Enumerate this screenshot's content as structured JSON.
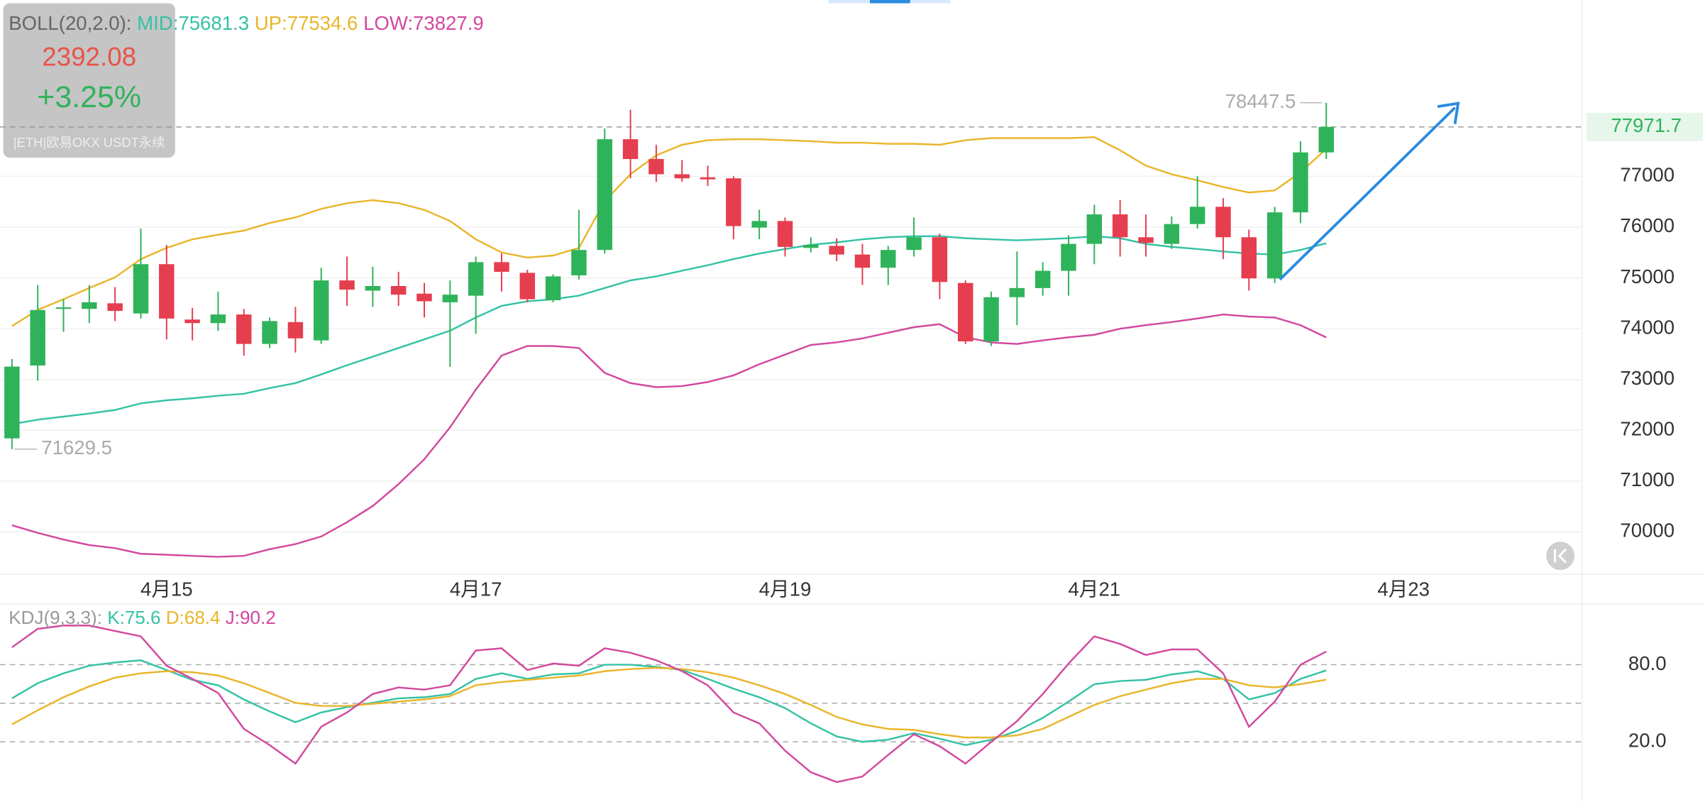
{
  "chart_data": [
    {
      "type": "candlestick",
      "indicator": "BOLL(20,2.0):",
      "ticker_price": "2392.08",
      "ticker_change": "+3.25%",
      "instrument": "|ETH|欧易OKX USDT永续",
      "max_price": 78447.5,
      "min_price": 71629.5,
      "last_price": 77971.7,
      "up_color": "#2fb35a",
      "down_color": "#e53e4e",
      "categories": [
        null,
        null,
        null,
        null,
        null,
        null,
        "4月15",
        null,
        null,
        null,
        null,
        null,
        null,
        null,
        null,
        null,
        null,
        null,
        "4月17",
        null,
        null,
        null,
        null,
        null,
        null,
        null,
        null,
        null,
        null,
        null,
        "4月19",
        null,
        null,
        null,
        null,
        null,
        null,
        null,
        null,
        null,
        null,
        null,
        "4月21",
        null,
        null,
        null,
        null,
        null,
        null,
        null,
        null,
        null,
        null,
        null,
        "4月23",
        null,
        null,
        null,
        null,
        null,
        null
      ],
      "open": [
        71841,
        73276,
        74390,
        74390,
        74500,
        74300,
        75270,
        74180,
        74110,
        74280,
        73700,
        74130,
        73770,
        74950,
        74750,
        74840,
        74690,
        74520,
        74650,
        75310,
        75100,
        74560,
        75050,
        75550,
        77730,
        77340,
        77040,
        76980,
        76960,
        75990,
        76120,
        75590,
        75630,
        75460,
        75200,
        75550,
        75800,
        74900,
        73750,
        74620,
        74800,
        75140,
        75670,
        76250,
        75800,
        75670,
        76060,
        76400,
        75800,
        74990,
        76290,
        77470,
        null,
        null,
        null,
        null,
        null,
        null,
        null,
        null,
        null
      ],
      "high": [
        73404,
        74860,
        74580,
        74860,
        74820,
        75970,
        75650,
        74410,
        74730,
        74390,
        74220,
        74430,
        75200,
        75420,
        75220,
        75120,
        74900,
        74950,
        75420,
        75480,
        75160,
        75070,
        76340,
        77940,
        78310,
        77620,
        77320,
        77210,
        77000,
        76340,
        76190,
        75800,
        75780,
        75670,
        75630,
        76190,
        75870,
        74950,
        74730,
        75520,
        75310,
        75840,
        76440,
        76530,
        76250,
        76210,
        77000,
        76570,
        75950,
        76400,
        77690,
        78447.5,
        null,
        null,
        null,
        null,
        null,
        null,
        null,
        null,
        null
      ],
      "low": [
        71629.5,
        72976,
        73940,
        74110,
        74150,
        74200,
        73790,
        73770,
        73960,
        73470,
        73620,
        73530,
        73700,
        74450,
        74430,
        74450,
        74220,
        73250,
        73900,
        74730,
        74520,
        74520,
        74970,
        75480,
        76960,
        76890,
        76890,
        76810,
        75760,
        75760,
        75420,
        75500,
        75330,
        74860,
        74860,
        75420,
        74580,
        73700,
        73660,
        74070,
        74650,
        74650,
        75270,
        75420,
        75420,
        75570,
        75970,
        75370,
        74750,
        74900,
        76080,
        77340,
        null,
        null,
        null,
        null,
        null,
        null,
        null,
        null,
        null
      ],
      "close": [
        73254,
        74368,
        74420,
        74520,
        74350,
        75270,
        74200,
        74110,
        74280,
        73700,
        74150,
        73810,
        74950,
        74770,
        74840,
        74670,
        74540,
        74670,
        75310,
        75120,
        74580,
        75030,
        75550,
        77730,
        77340,
        77040,
        76960,
        76940,
        76020,
        76120,
        75610,
        75650,
        75460,
        75200,
        75550,
        75800,
        74920,
        73750,
        74620,
        74800,
        75140,
        75670,
        76250,
        75800,
        75690,
        76060,
        76400,
        75800,
        74990,
        76290,
        77470,
        77971.7,
        null,
        null,
        null,
        null,
        null,
        null,
        null,
        null,
        null
      ],
      "series": [
        {
          "name": "MID:75681.3",
          "color": "#35c2a5",
          "values": [
            72120,
            72210,
            72270,
            72330,
            72400,
            72530,
            72590,
            72630,
            72680,
            72720,
            72830,
            72930,
            73100,
            73280,
            73450,
            73620,
            73790,
            73960,
            74220,
            74450,
            74540,
            74580,
            74650,
            74800,
            74950,
            75030,
            75140,
            75250,
            75370,
            75480,
            75570,
            75650,
            75700,
            75760,
            75800,
            75820,
            75820,
            75780,
            75760,
            75740,
            75760,
            75780,
            75820,
            75780,
            75670,
            75610,
            75570,
            75520,
            75480,
            75460,
            75550,
            75681.3,
            null,
            null,
            null,
            null,
            null,
            null,
            null,
            null,
            null
          ]
        },
        {
          "name": "UP:77534.6",
          "color": "#e9b52a",
          "values": [
            74050,
            74370,
            74580,
            74800,
            75010,
            75370,
            75590,
            75760,
            75850,
            75930,
            76080,
            76190,
            76360,
            76470,
            76530,
            76470,
            76340,
            76120,
            75760,
            75500,
            75400,
            75440,
            75590,
            76510,
            77040,
            77410,
            77620,
            77710,
            77730,
            77730,
            77710,
            77690,
            77660,
            77660,
            77640,
            77640,
            77620,
            77710,
            77750,
            77750,
            77750,
            77750,
            77770,
            77510,
            77210,
            77040,
            76920,
            76790,
            76680,
            76720,
            77080,
            77534.6,
            null,
            null,
            null,
            null,
            null,
            null,
            null,
            null,
            null
          ]
        },
        {
          "name": "LOW:73827.9",
          "color": "#d2489e",
          "values": [
            70130,
            69980,
            69850,
            69740,
            69680,
            69570,
            69550,
            69530,
            69510,
            69530,
            69660,
            69760,
            69910,
            70190,
            70510,
            70940,
            71430,
            72060,
            72800,
            73470,
            73660,
            73660,
            73620,
            73130,
            72930,
            72850,
            72870,
            72950,
            73080,
            73300,
            73490,
            73680,
            73730,
            73810,
            73920,
            74030,
            74090,
            73830,
            73730,
            73700,
            73770,
            73830,
            73880,
            74000,
            74070,
            74130,
            74200,
            74280,
            74240,
            74220,
            74070,
            73827.9,
            null,
            null,
            null,
            null,
            null,
            null,
            null,
            null,
            null
          ]
        }
      ],
      "ylim": [
        69165,
        80470
      ],
      "yticks": [
        70000,
        71000,
        72000,
        73000,
        74000,
        75000,
        76000,
        77000
      ],
      "grid": true
    },
    {
      "type": "line",
      "indicator": "KDJ(9,3,3):",
      "series": [
        {
          "name": "K:75.6",
          "color": "#35c2a5",
          "values": [
            53.8,
            65.6,
            73.3,
            79.2,
            81.7,
            83.4,
            75.8,
            68.2,
            64.0,
            53.0,
            43.7,
            35.2,
            42.8,
            47.0,
            50.4,
            53.8,
            54.7,
            57.2,
            69.0,
            73.3,
            69.0,
            72.4,
            73.3,
            80.0,
            80.0,
            78.3,
            75.8,
            69.0,
            61.4,
            54.7,
            46.2,
            34.4,
            24.2,
            20.0,
            21.7,
            26.8,
            22.5,
            17.5,
            21.7,
            28.5,
            38.6,
            51.3,
            64.8,
            67.3,
            68.2,
            72.4,
            74.9,
            69.0,
            53.0,
            58.0,
            69.0,
            75.6
          ]
        },
        {
          "name": "D:68.4",
          "color": "#e9b52a",
          "values": [
            33.5,
            44.5,
            54.7,
            63.1,
            69.9,
            73.3,
            74.9,
            74.1,
            71.6,
            65.6,
            58.0,
            50.4,
            47.9,
            47.9,
            49.6,
            51.3,
            53.0,
            55.5,
            64.0,
            66.5,
            68.2,
            69.9,
            71.6,
            74.9,
            76.6,
            77.5,
            76.6,
            74.1,
            69.9,
            64.0,
            57.2,
            48.7,
            39.4,
            33.5,
            30.1,
            29.3,
            25.9,
            23.4,
            23.4,
            25.1,
            30.1,
            39.4,
            48.7,
            55.5,
            60.6,
            65.6,
            69.0,
            69.0,
            64.0,
            62.3,
            64.8,
            68.4
          ]
        },
        {
          "name": "J:90.2",
          "color": "#d2489e",
          "values": [
            93.5,
            107.9,
            110.4,
            110.4,
            106.2,
            102.0,
            79.2,
            69.0,
            58.0,
            30.1,
            17.5,
            3.1,
            31.8,
            42.8,
            57.2,
            62.3,
            60.6,
            64.0,
            91.0,
            92.7,
            75.8,
            80.9,
            79.2,
            92.7,
            89.3,
            83.4,
            75.0,
            64.0,
            42.8,
            34.4,
            13.2,
            -3.7,
            -11.3,
            -7.0,
            9.9,
            25.9,
            16.6,
            3.1,
            20.0,
            36.1,
            57.2,
            80.9,
            102.0,
            96.1,
            87.6,
            91.9,
            91.9,
            73.3,
            31.8,
            51.3,
            80.0,
            90.2
          ]
        }
      ],
      "ylim": [
        -26.5,
        127.4
      ],
      "yticks": [
        {
          "value": 20,
          "label": "20.0"
        },
        {
          "value": 80,
          "label": "80.0"
        }
      ],
      "grid_lines": [
        20,
        50,
        80
      ]
    }
  ]
}
